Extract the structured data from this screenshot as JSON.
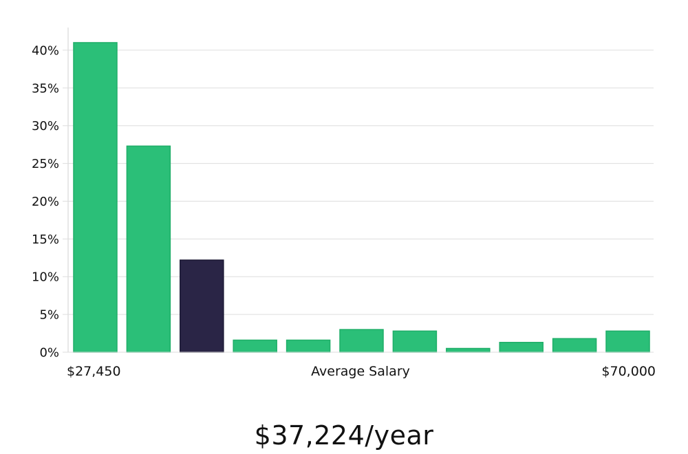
{
  "chart_data": {
    "type": "bar",
    "title": "",
    "xlabel": "Average Salary",
    "x_min_label": "$27,450",
    "x_max_label": "$70,000",
    "ylabel": "",
    "ylim": [
      0,
      43
    ],
    "yticks": [
      0,
      5,
      10,
      15,
      20,
      25,
      30,
      35,
      40
    ],
    "ytick_labels": [
      "0%",
      "5%",
      "10%",
      "15%",
      "20%",
      "25%",
      "30%",
      "35%",
      "40%"
    ],
    "values": [
      41,
      27.3,
      12.2,
      1.6,
      1.6,
      3.0,
      2.8,
      0.5,
      1.3,
      1.8,
      2.8
    ],
    "highlight_index": 2,
    "colors": {
      "bar": "#2bbf78",
      "bar_stroke": "#1fae68",
      "highlight": "#2a2546",
      "grid": "#dddddd",
      "axis": "#d0d0d0"
    },
    "grid": true,
    "legend": "none"
  },
  "summary": {
    "value": "$37,224/year"
  }
}
